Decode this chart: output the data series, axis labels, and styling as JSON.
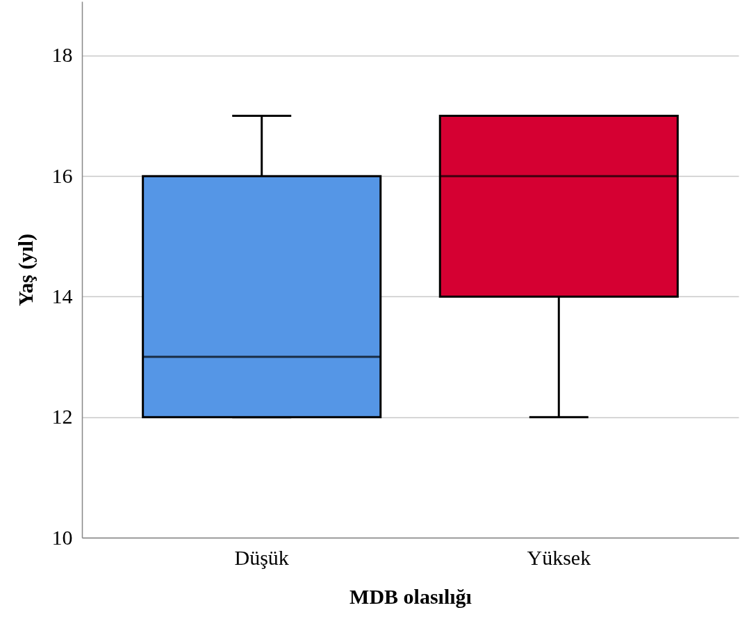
{
  "chart_data": {
    "type": "box",
    "xlabel": "MDB olasılığı",
    "ylabel": "Yaş (yıl)",
    "categories": [
      "Düşük",
      "Yüksek"
    ],
    "colors": [
      "#5596e6",
      "#d50032"
    ],
    "boxes": [
      {
        "low": 12,
        "q1": 12,
        "median": 13,
        "q3": 16,
        "high": 17
      },
      {
        "low": 12,
        "q1": 14,
        "median": 16,
        "q3": 17,
        "high": 17
      }
    ],
    "ylim": [
      10,
      18.9
    ],
    "yticks": [
      10,
      12,
      14,
      16,
      18
    ],
    "grid": "y"
  }
}
